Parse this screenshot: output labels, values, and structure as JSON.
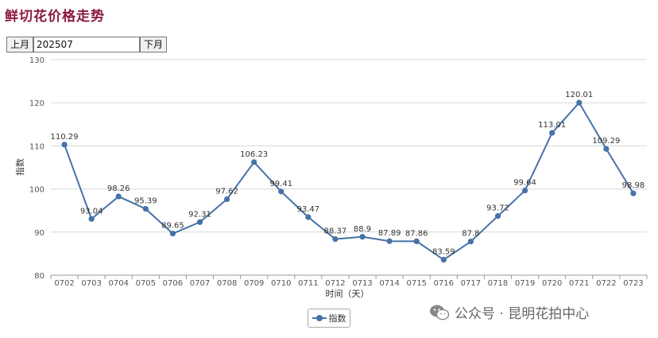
{
  "page": {
    "title": "鲜切花价格走势"
  },
  "controls": {
    "prev_label": "上月",
    "month_value": "202507",
    "next_label": "下月"
  },
  "watermark": {
    "text": "公众号 · 昆明花拍中心",
    "icon": "wechat-icon"
  },
  "colors": {
    "series": "#4572a7",
    "title": "#8b1a3e",
    "grid": "#d8d8d8"
  },
  "chart_data": {
    "type": "line",
    "xlabel": "时间（天）",
    "ylabel": "指数",
    "ylim": [
      80,
      130
    ],
    "yticks": [
      "80",
      "90",
      "100",
      "110",
      "120",
      "130"
    ],
    "grid": true,
    "legend": "bottom-center",
    "categories": [
      "0702",
      "0703",
      "0704",
      "0705",
      "0706",
      "0707",
      "0708",
      "0709",
      "0710",
      "0711",
      "0712",
      "0713",
      "0714",
      "0715",
      "0716",
      "0717",
      "0718",
      "0719",
      "0720",
      "0721",
      "0722",
      "0723"
    ],
    "series": [
      {
        "name": "指数",
        "values": [
          110.29,
          93.04,
          98.26,
          95.39,
          89.65,
          92.31,
          97.62,
          106.23,
          99.41,
          93.47,
          88.37,
          88.9,
          87.89,
          87.86,
          83.59,
          87.8,
          93.72,
          99.64,
          113.01,
          120.01,
          109.29,
          98.98
        ]
      }
    ]
  }
}
